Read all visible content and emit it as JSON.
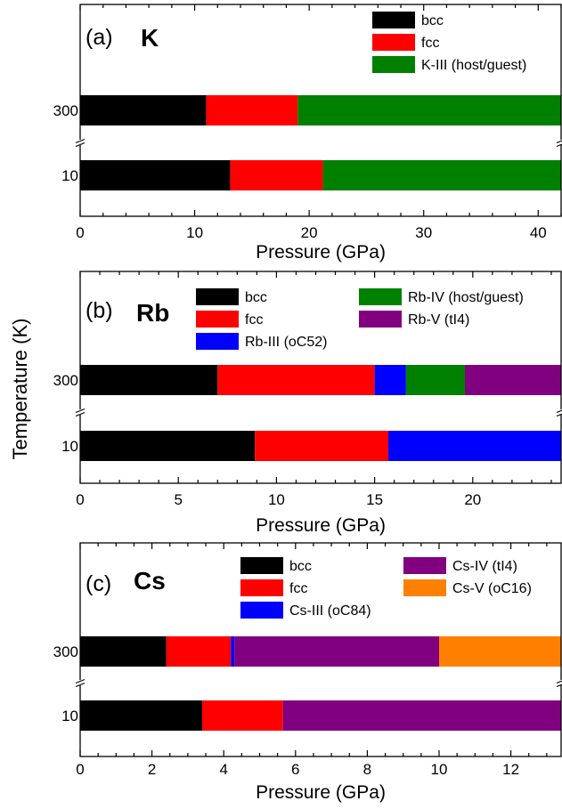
{
  "ylabel": "Temperature (K)",
  "chart_data": [
    {
      "type": "bar",
      "panel_tag": "(a)",
      "element": "K",
      "xlabel": "Pressure (GPa)",
      "xlim": [
        0,
        42
      ],
      "xticks": [
        0,
        10,
        20,
        30,
        40
      ],
      "minor_step": 2,
      "legend": [
        {
          "label": "bcc",
          "color": "#000000"
        },
        {
          "label": "fcc",
          "color": "#ff0000"
        },
        {
          "label": "K-III (host/guest)",
          "color": "#008000"
        }
      ],
      "rows": [
        {
          "temperature": "300",
          "segments": [
            {
              "phase": "bcc",
              "start": 0,
              "end": 11,
              "color": "#000000"
            },
            {
              "phase": "fcc",
              "start": 11,
              "end": 19,
              "color": "#ff0000"
            },
            {
              "phase": "K-III (host/guest)",
              "start": 19,
              "end": 42,
              "color": "#008000"
            }
          ]
        },
        {
          "temperature": "10",
          "segments": [
            {
              "phase": "bcc",
              "start": 0,
              "end": 13.1,
              "color": "#000000"
            },
            {
              "phase": "fcc",
              "start": 13.1,
              "end": 21.2,
              "color": "#ff0000"
            },
            {
              "phase": "K-III (host/guest)",
              "start": 21.2,
              "end": 42,
              "color": "#008000"
            }
          ]
        }
      ]
    },
    {
      "type": "bar",
      "panel_tag": "(b)",
      "element": "Rb",
      "xlabel": "Pressure (GPa)",
      "xlim": [
        0,
        24.5
      ],
      "xticks": [
        0,
        5,
        10,
        15,
        20
      ],
      "minor_step": 1,
      "legend": [
        {
          "label": "bcc",
          "color": "#000000"
        },
        {
          "label": "fcc",
          "color": "#ff0000"
        },
        {
          "label": "Rb-III (oC52)",
          "color": "#0000ff"
        },
        {
          "label": "Rb-IV (host/guest)",
          "color": "#008000"
        },
        {
          "label": "Rb-V (tI4)",
          "color": "#800080"
        }
      ],
      "rows": [
        {
          "temperature": "300",
          "segments": [
            {
              "phase": "bcc",
              "start": 0,
              "end": 7,
              "color": "#000000"
            },
            {
              "phase": "fcc",
              "start": 7,
              "end": 15,
              "color": "#ff0000"
            },
            {
              "phase": "Rb-III (oC52)",
              "start": 15,
              "end": 16.6,
              "color": "#0000ff"
            },
            {
              "phase": "Rb-IV (host/guest)",
              "start": 16.6,
              "end": 19.6,
              "color": "#008000"
            },
            {
              "phase": "Rb-V (tI4)",
              "start": 19.6,
              "end": 24.5,
              "color": "#800080"
            }
          ]
        },
        {
          "temperature": "10",
          "segments": [
            {
              "phase": "bcc",
              "start": 0,
              "end": 8.9,
              "color": "#000000"
            },
            {
              "phase": "fcc",
              "start": 8.9,
              "end": 15.7,
              "color": "#ff0000"
            },
            {
              "phase": "Rb-III (oC52)",
              "start": 15.7,
              "end": 24.5,
              "color": "#0000ff"
            }
          ]
        }
      ]
    },
    {
      "type": "bar",
      "panel_tag": "(c)",
      "element": "Cs",
      "xlabel": "Pressure (GPa)",
      "xlim": [
        0,
        13.4
      ],
      "xticks": [
        0,
        2,
        4,
        6,
        8,
        10,
        12
      ],
      "minor_step": 0.5,
      "legend": [
        {
          "label": "bcc",
          "color": "#000000"
        },
        {
          "label": "fcc",
          "color": "#ff0000"
        },
        {
          "label": "Cs-III (oC84)",
          "color": "#0000ff"
        },
        {
          "label": "Cs-IV (tI4)",
          "color": "#800080"
        },
        {
          "label": "Cs-V (oC16)",
          "color": "#ff8000"
        }
      ],
      "rows": [
        {
          "temperature": "300",
          "segments": [
            {
              "phase": "bcc",
              "start": 0,
              "end": 2.4,
              "color": "#000000"
            },
            {
              "phase": "fcc",
              "start": 2.4,
              "end": 4.2,
              "color": "#ff0000"
            },
            {
              "phase": "Cs-III (oC84)",
              "start": 4.2,
              "end": 4.3,
              "color": "#0000ff"
            },
            {
              "phase": "Cs-IV (tI4)",
              "start": 4.3,
              "end": 10,
              "color": "#800080"
            },
            {
              "phase": "Cs-V (oC16)",
              "start": 10,
              "end": 13.4,
              "color": "#ff8000"
            }
          ]
        },
        {
          "temperature": "10",
          "segments": [
            {
              "phase": "bcc",
              "start": 0,
              "end": 3.4,
              "color": "#000000"
            },
            {
              "phase": "fcc",
              "start": 3.4,
              "end": 5.65,
              "color": "#ff0000"
            },
            {
              "phase": "Cs-IV (tI4)",
              "start": 5.65,
              "end": 13.4,
              "color": "#800080"
            }
          ]
        }
      ]
    }
  ]
}
